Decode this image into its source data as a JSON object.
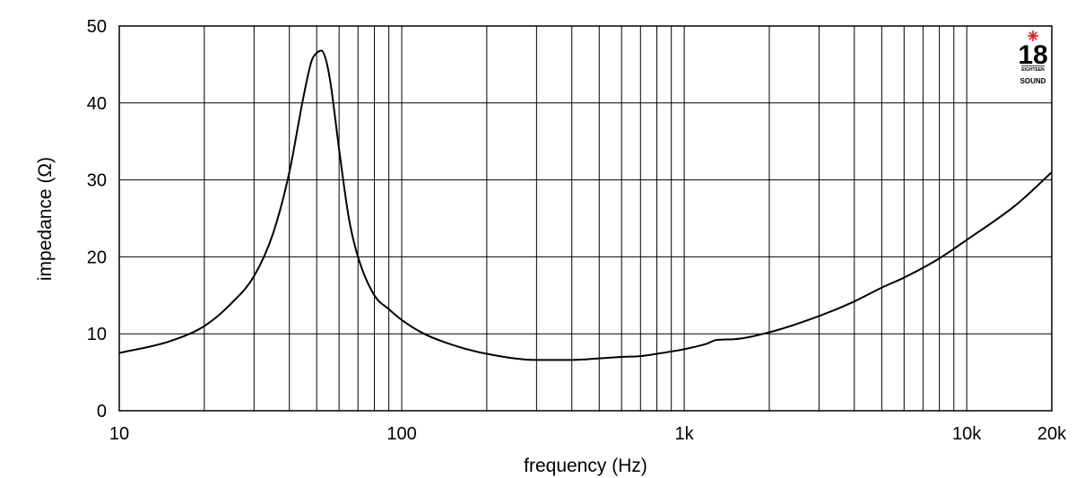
{
  "chart_data": {
    "type": "line",
    "title": "",
    "xlabel": "frequency (Hz)",
    "ylabel": "impedance (Ω)",
    "x_scale": "log",
    "xlim": [
      10,
      20000
    ],
    "ylim": [
      0,
      50
    ],
    "x_ticks": [
      {
        "value": 10,
        "label": "10"
      },
      {
        "value": 100,
        "label": "100"
      },
      {
        "value": 1000,
        "label": "1k"
      },
      {
        "value": 10000,
        "label": "10k"
      },
      {
        "value": 20000,
        "label": "20k"
      }
    ],
    "y_ticks": [
      {
        "value": 0,
        "label": "0"
      },
      {
        "value": 10,
        "label": "10"
      },
      {
        "value": 20,
        "label": "20"
      },
      {
        "value": 30,
        "label": "30"
      },
      {
        "value": 40,
        "label": "40"
      },
      {
        "value": 50,
        "label": "50"
      }
    ],
    "grid": true,
    "line_color": "#000000",
    "series": [
      {
        "x": [
          10,
          15,
          20,
          25,
          30,
          35,
          40,
          45,
          48,
          50,
          52,
          54,
          56,
          60,
          65,
          70,
          80,
          90,
          100,
          120,
          150,
          200,
          300,
          400,
          500,
          600,
          700,
          800,
          1000,
          1200,
          1300,
          1500,
          2000,
          3000,
          4000,
          5000,
          6000,
          8000,
          10000,
          15000,
          20000
        ],
        "y": [
          7.5,
          9.0,
          11.0,
          14.0,
          17.5,
          23.0,
          31.0,
          41.0,
          45.5,
          46.5,
          46.8,
          45.5,
          42.5,
          34.0,
          25.0,
          20.0,
          15.0,
          13.2,
          11.8,
          10.0,
          8.6,
          7.4,
          6.6,
          6.6,
          6.8,
          7.0,
          7.1,
          7.4,
          8.0,
          8.7,
          9.2,
          9.3,
          10.2,
          12.3,
          14.2,
          16.0,
          17.3,
          19.8,
          22.2,
          26.8,
          31.0
        ]
      }
    ]
  },
  "logo": {
    "number": "18",
    "top_text": "EIGHTEEN",
    "bottom_text": "SOUND",
    "star_color": "#e31b23"
  }
}
